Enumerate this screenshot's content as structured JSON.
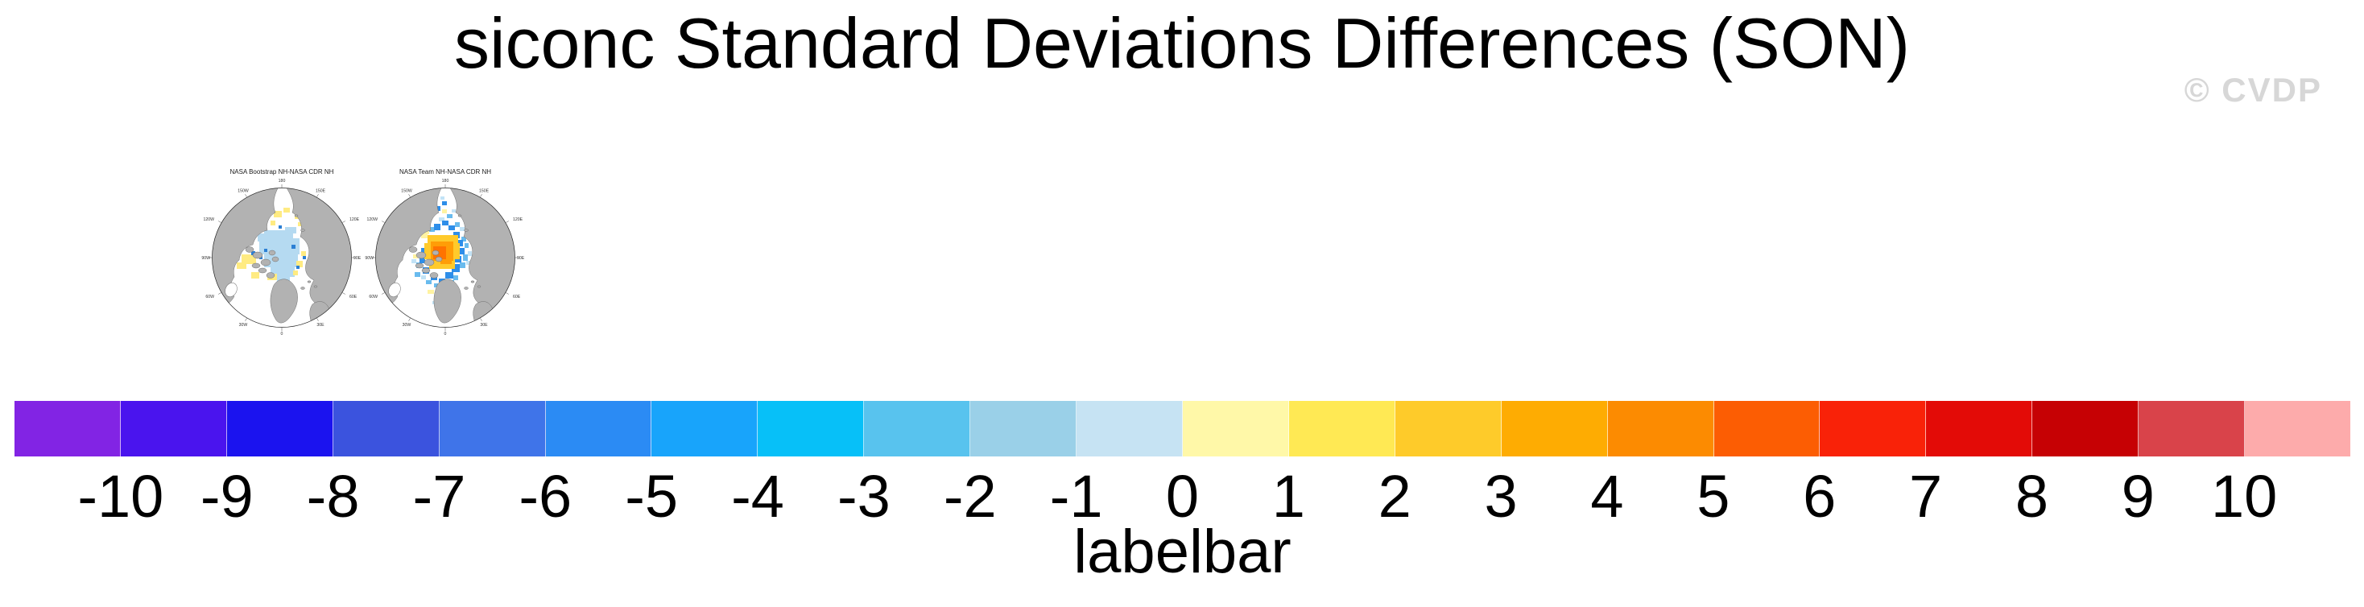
{
  "header": {
    "title": "siconc Standard Deviations Differences (SON)",
    "watermark": "© CVDP"
  },
  "maps": {
    "panel1": {
      "title": "NASA Bootstrap NH-NASA CDR NH"
    },
    "panel2": {
      "title": "NASA Team NH-NASA CDR NH"
    },
    "lon_labels": {
      "l180": "180",
      "l150e": "150E",
      "l120e": "120E",
      "l90e": "90E",
      "l60e": "60E",
      "l30e": "30E",
      "l0": "0",
      "l30w": "30W",
      "l60w": "60W",
      "l90w": "90W",
      "l120w": "120W",
      "l150w": "150W"
    }
  },
  "colorbar": {
    "caption": "labelbar",
    "colors": [
      "#8224e4",
      "#4a14ee",
      "#1b13ef",
      "#3b53de",
      "#3f74e9",
      "#2b8bf4",
      "#18a4fb",
      "#07c0f8",
      "#58c3ee",
      "#9ad0e8",
      "#c6e3f3",
      "#fff8a8",
      "#ffe954",
      "#fecb2a",
      "#feac02",
      "#fc8b01",
      "#fc5d03",
      "#f92208",
      "#e30b07",
      "#c60104",
      "#d9434a",
      "#fdabab"
    ],
    "tick_labels": [
      "-10",
      "-9",
      "-8",
      "-7",
      "-6",
      "-5",
      "-4",
      "-3",
      "-2",
      "-1",
      "0",
      "1",
      "2",
      "3",
      "4",
      "5",
      "6",
      "7",
      "8",
      "9",
      "10"
    ]
  },
  "chart_data": {
    "type": "heatmap",
    "title": "siconc Standard Deviations Differences (SON)",
    "variable": "siconc",
    "season": "SON",
    "panels": [
      {
        "title": "NASA Bootstrap NH-NASA CDR NH",
        "projection": "north polar stereographic",
        "dominant_values": "pale blue (-1 to 0) over central Arctic ocean, scattered pale yellow (0 to 1) cells near coasts, few dark blue (-5 to -3) specks"
      },
      {
        "title": "NASA Team NH-NASA CDR NH",
        "projection": "north polar stereographic",
        "dominant_values": "orange/gold core (+2 to +6) near the pole toward Canadian Arctic, ringed by blue cells (-5 to -1), few pale yellow cells"
      }
    ],
    "colorbar": {
      "caption": "labelbar",
      "levels": [
        -10,
        -9,
        -8,
        -7,
        -6,
        -5,
        -4,
        -3,
        -2,
        -1,
        0,
        1,
        2,
        3,
        4,
        5,
        6,
        7,
        8,
        9,
        10
      ],
      "n_colors": 22,
      "colors": [
        "#8224e4",
        "#4a14ee",
        "#1b13ef",
        "#3b53de",
        "#3f74e9",
        "#2b8bf4",
        "#18a4fb",
        "#07c0f8",
        "#58c3ee",
        "#9ad0e8",
        "#c6e3f3",
        "#fff8a8",
        "#ffe954",
        "#fecb2a",
        "#feac02",
        "#fc8b01",
        "#fc5d03",
        "#f92208",
        "#e30b07",
        "#c60104",
        "#d9434a",
        "#fdabab"
      ]
    },
    "watermark": "© CVDP",
    "legend_position": "bottom",
    "grid": false
  }
}
